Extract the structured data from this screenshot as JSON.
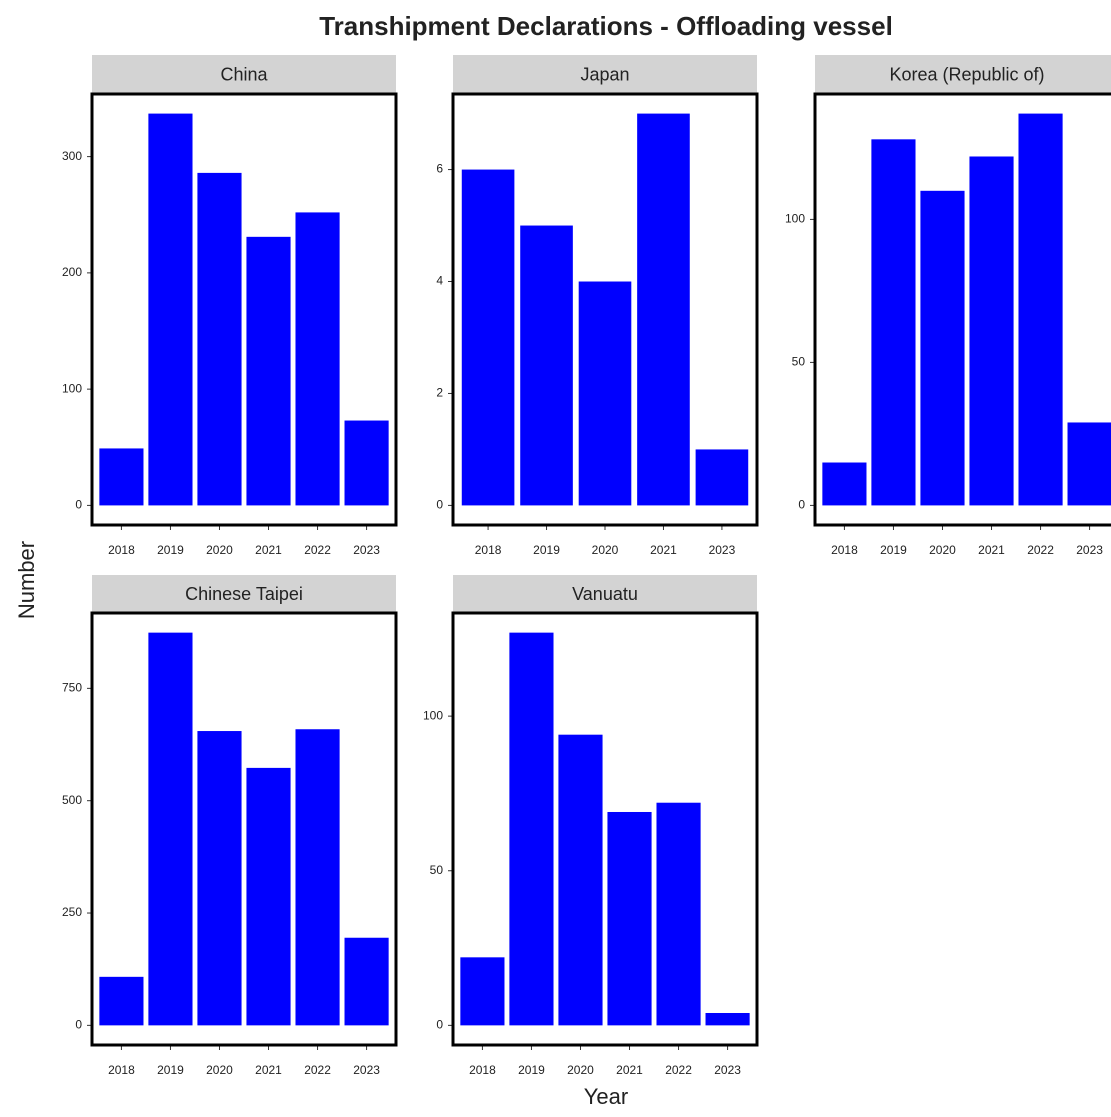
{
  "title": "Transhipment Declarations - Offloading vessel",
  "xlabel": "Year",
  "ylabel": "Number",
  "chart_data": [
    {
      "type": "bar",
      "title": "China",
      "categories": [
        "2018",
        "2019",
        "2020",
        "2021",
        "2022",
        "2023"
      ],
      "values": [
        49,
        337,
        286,
        231,
        252,
        73
      ],
      "color": "#0000ff",
      "ylim": [
        -16.85,
        353.85
      ],
      "yticks": [
        0,
        100,
        200,
        300
      ]
    },
    {
      "type": "bar",
      "title": "Japan",
      "categories": [
        "2018",
        "2019",
        "2020",
        "2021",
        "2023"
      ],
      "values": [
        6,
        5,
        4,
        7,
        1
      ],
      "color": "#0000ff",
      "ylim": [
        -0.35,
        7.35
      ],
      "yticks": [
        0,
        2,
        4,
        6
      ]
    },
    {
      "type": "bar",
      "title": "Korea (Republic of)",
      "categories": [
        "2018",
        "2019",
        "2020",
        "2021",
        "2022",
        "2023"
      ],
      "values": [
        15,
        128,
        110,
        122,
        137,
        29
      ],
      "color": "#0000ff",
      "ylim": [
        -6.85,
        143.85
      ],
      "yticks": [
        0,
        50,
        100
      ]
    },
    {
      "type": "bar",
      "title": "Chinese Taipei",
      "categories": [
        "2018",
        "2019",
        "2020",
        "2021",
        "2022",
        "2023"
      ],
      "values": [
        108,
        874,
        655,
        573,
        659,
        195
      ],
      "color": "#0000ff",
      "ylim": [
        -43.7,
        917.7
      ],
      "yticks": [
        0,
        250,
        500,
        750
      ]
    },
    {
      "type": "bar",
      "title": "Vanuatu",
      "categories": [
        "2018",
        "2019",
        "2020",
        "2021",
        "2022",
        "2023"
      ],
      "values": [
        22,
        127,
        94,
        69,
        72,
        4
      ],
      "color": "#0000ff",
      "ylim": [
        -6.35,
        133.35
      ],
      "yticks": [
        0,
        50,
        100
      ]
    }
  ]
}
